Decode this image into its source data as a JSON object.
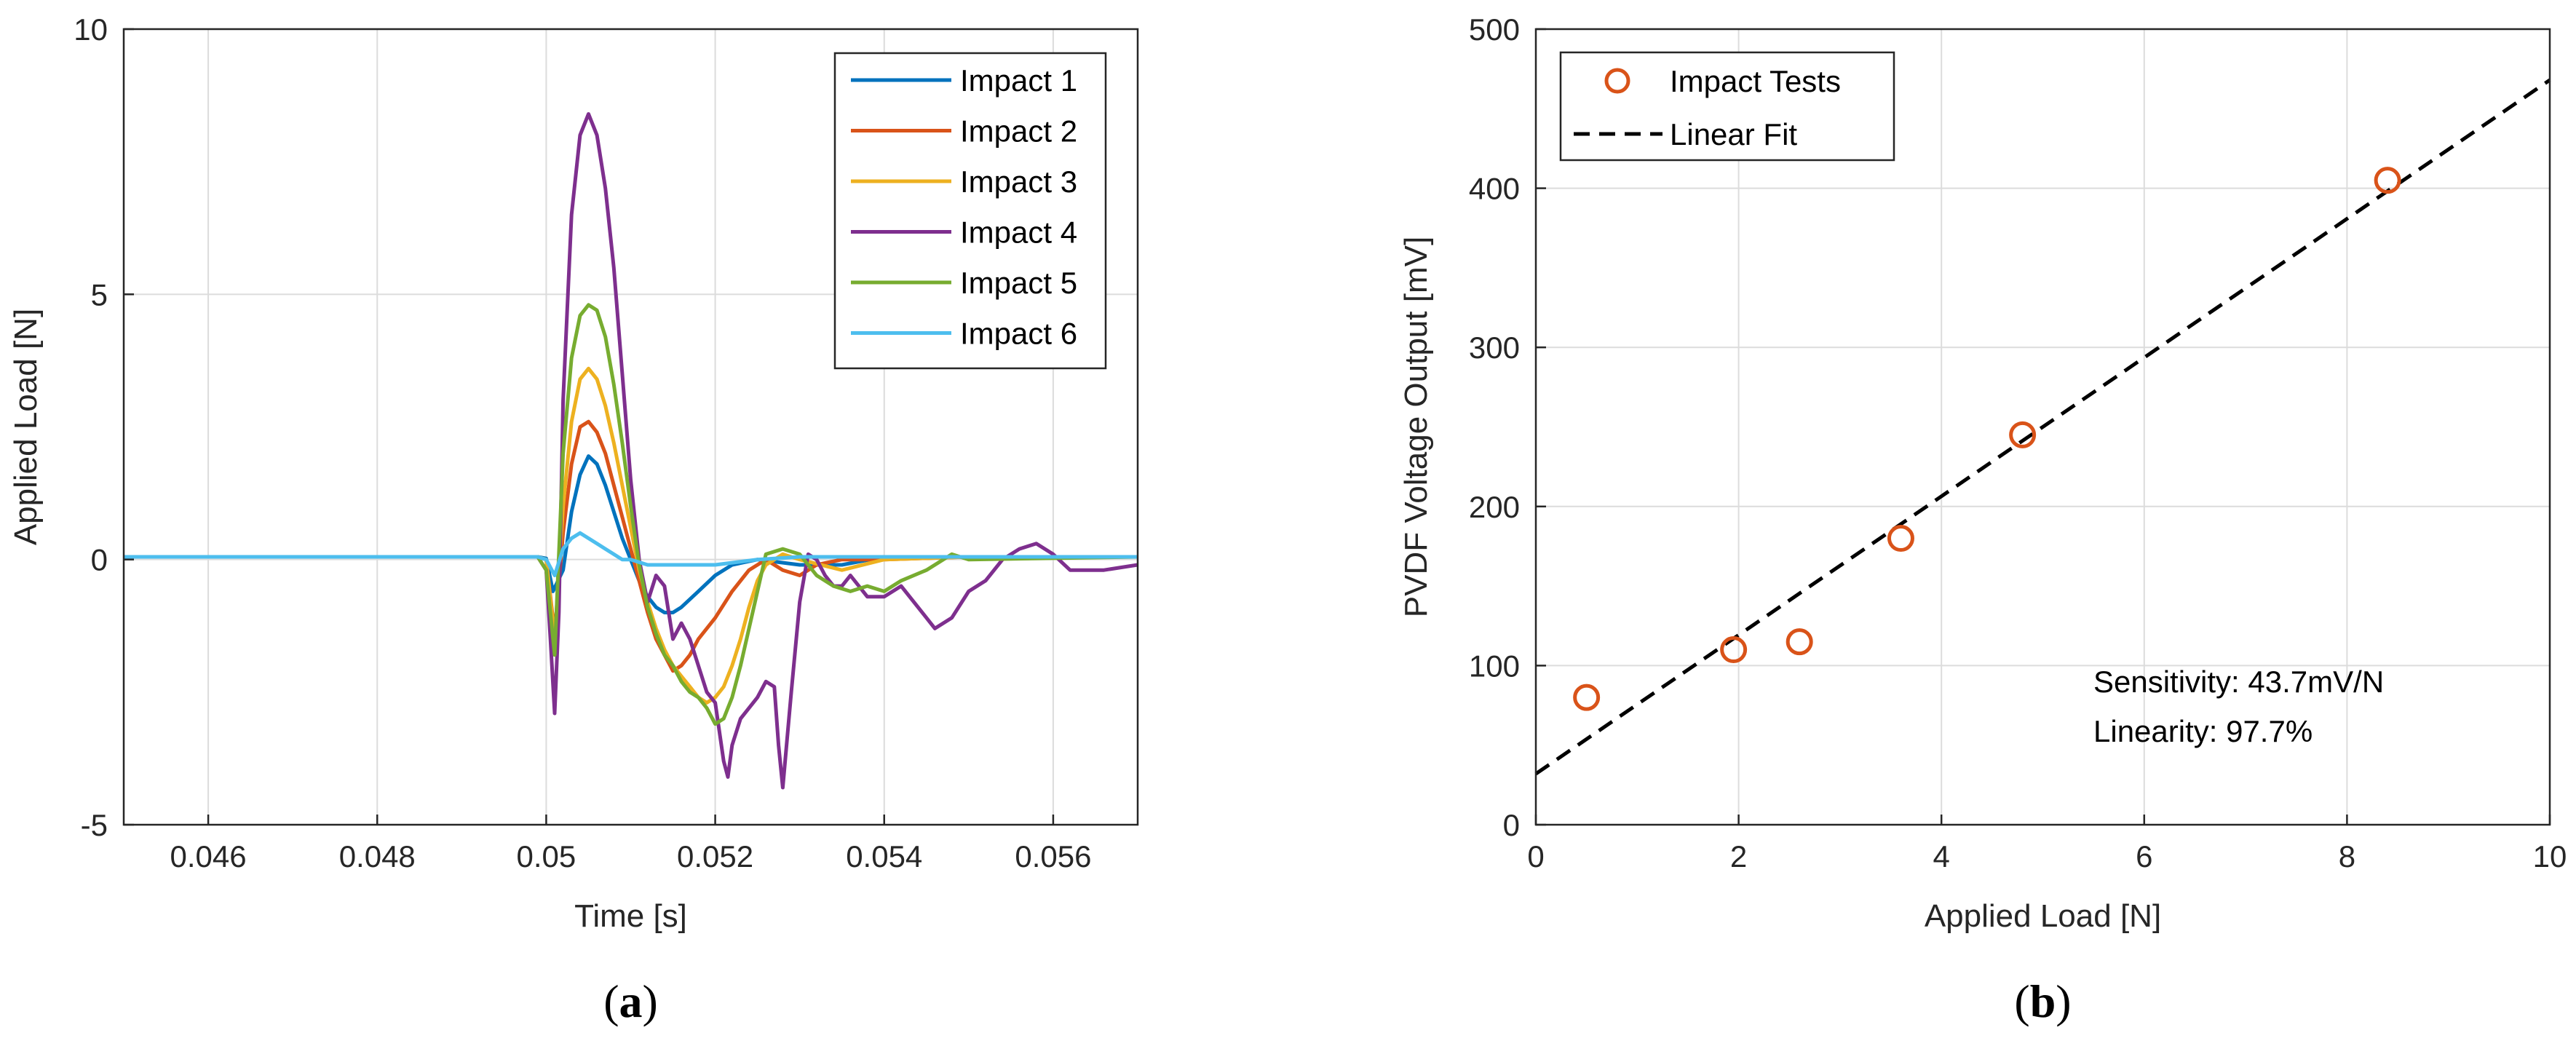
{
  "chart_data": [
    {
      "id": "a",
      "type": "line",
      "caption_letter": "a",
      "xlabel": "Time [s]",
      "ylabel": "Applied Load [N]",
      "xlim": [
        0.045,
        0.057
      ],
      "ylim": [
        -5,
        10
      ],
      "xticks": [
        0.046,
        0.048,
        0.05,
        0.052,
        0.054,
        0.056
      ],
      "xtick_labels": [
        "0.046",
        "0.048",
        "0.05",
        "0.052",
        "0.054",
        "0.056"
      ],
      "yticks": [
        -5,
        0,
        5,
        10
      ],
      "ytick_labels": [
        "-5",
        "0",
        "5",
        "10"
      ],
      "grid": true,
      "legend_position": "top-right",
      "series": [
        {
          "name": "Impact 1",
          "color": "#0072BD",
          "x": [
            0.045,
            0.0499,
            0.05,
            0.05008,
            0.0502,
            0.0503,
            0.0504,
            0.0505,
            0.0506,
            0.0507,
            0.0508,
            0.0509,
            0.051,
            0.0511,
            0.0512,
            0.0513,
            0.0514,
            0.0515,
            0.0516,
            0.0518,
            0.052,
            0.0522,
            0.0525,
            0.053,
            0.0535,
            0.054,
            0.055,
            0.057
          ],
          "y": [
            0.05,
            0.05,
            0.02,
            -0.6,
            -0.2,
            0.9,
            1.6,
            1.95,
            1.8,
            1.4,
            0.9,
            0.4,
            0.0,
            -0.4,
            -0.7,
            -0.9,
            -1.0,
            -1.0,
            -0.9,
            -0.6,
            -0.3,
            -0.1,
            0.0,
            -0.1,
            -0.1,
            0.05,
            0.05,
            0.05
          ]
        },
        {
          "name": "Impact 2",
          "color": "#D95319",
          "x": [
            0.045,
            0.0499,
            0.05,
            0.0501,
            0.0502,
            0.0503,
            0.0504,
            0.0505,
            0.0506,
            0.0507,
            0.0508,
            0.0509,
            0.051,
            0.0511,
            0.0512,
            0.0513,
            0.0514,
            0.0515,
            0.0516,
            0.0517,
            0.0518,
            0.052,
            0.0522,
            0.0524,
            0.0526,
            0.0528,
            0.053,
            0.0532,
            0.0535,
            0.054,
            0.055,
            0.057
          ],
          "y": [
            0.05,
            0.05,
            0.0,
            -1.4,
            0.5,
            1.8,
            2.5,
            2.6,
            2.4,
            2.0,
            1.4,
            0.8,
            0.2,
            -0.4,
            -1.0,
            -1.5,
            -1.8,
            -2.1,
            -2.0,
            -1.8,
            -1.5,
            -1.1,
            -0.6,
            -0.2,
            0.0,
            -0.2,
            -0.3,
            -0.1,
            0.0,
            0.0,
            0.05,
            0.05
          ]
        },
        {
          "name": "Impact 3",
          "color": "#EDB120",
          "x": [
            0.045,
            0.0499,
            0.05,
            0.0501,
            0.0502,
            0.0503,
            0.0504,
            0.0505,
            0.0506,
            0.0507,
            0.0508,
            0.0509,
            0.051,
            0.0511,
            0.0512,
            0.0513,
            0.0514,
            0.0515,
            0.0516,
            0.0517,
            0.0518,
            0.0519,
            0.052,
            0.0521,
            0.0522,
            0.0523,
            0.0524,
            0.0525,
            0.0526,
            0.0527,
            0.0528,
            0.053,
            0.0535,
            0.054,
            0.055,
            0.057
          ],
          "y": [
            0.05,
            0.05,
            0.0,
            -1.5,
            1.0,
            2.6,
            3.4,
            3.6,
            3.4,
            2.9,
            2.2,
            1.4,
            0.6,
            -0.2,
            -0.8,
            -1.3,
            -1.7,
            -2.0,
            -2.2,
            -2.4,
            -2.6,
            -2.7,
            -2.6,
            -2.4,
            -2.0,
            -1.5,
            -0.9,
            -0.4,
            -0.1,
            0.0,
            0.1,
            0.0,
            -0.2,
            0.0,
            0.05,
            0.05
          ]
        },
        {
          "name": "Impact 4",
          "color": "#7E2F8E",
          "x": [
            0.045,
            0.0499,
            0.05,
            0.05005,
            0.0501,
            0.05015,
            0.0502,
            0.0503,
            0.0504,
            0.0505,
            0.0506,
            0.0507,
            0.0508,
            0.0509,
            0.051,
            0.0511,
            0.0512,
            0.0513,
            0.0514,
            0.0515,
            0.0516,
            0.0517,
            0.0518,
            0.0519,
            0.052,
            0.0521,
            0.05215,
            0.0522,
            0.0523,
            0.0524,
            0.0525,
            0.0526,
            0.0527,
            0.05275,
            0.0528,
            0.0529,
            0.053,
            0.0531,
            0.0532,
            0.0533,
            0.0534,
            0.0535,
            0.0536,
            0.0538,
            0.054,
            0.0542,
            0.0544,
            0.0546,
            0.0548,
            0.055,
            0.0552,
            0.0554,
            0.0556,
            0.0558,
            0.056,
            0.0562,
            0.0564,
            0.0566,
            0.057
          ],
          "y": [
            0.05,
            0.05,
            -0.2,
            -1.5,
            -2.9,
            -1.0,
            3.0,
            6.5,
            8.0,
            8.4,
            8.0,
            7.0,
            5.5,
            3.5,
            1.5,
            0.0,
            -0.8,
            -0.3,
            -0.5,
            -1.5,
            -1.2,
            -1.5,
            -2.0,
            -2.5,
            -2.7,
            -3.8,
            -4.1,
            -3.5,
            -3.0,
            -2.8,
            -2.6,
            -2.3,
            -2.4,
            -3.5,
            -4.3,
            -2.5,
            -0.8,
            0.1,
            0.0,
            -0.3,
            -0.5,
            -0.5,
            -0.3,
            -0.7,
            -0.7,
            -0.5,
            -0.9,
            -1.3,
            -1.1,
            -0.6,
            -0.4,
            0.0,
            0.2,
            0.3,
            0.1,
            -0.2,
            -0.2,
            -0.2,
            -0.1
          ]
        },
        {
          "name": "Impact 5",
          "color": "#77AC30",
          "x": [
            0.045,
            0.0499,
            0.05,
            0.0501,
            0.0502,
            0.0503,
            0.0504,
            0.0505,
            0.0506,
            0.0507,
            0.0508,
            0.0509,
            0.051,
            0.0511,
            0.0512,
            0.0513,
            0.0514,
            0.0515,
            0.0516,
            0.0517,
            0.0518,
            0.0519,
            0.052,
            0.0521,
            0.0522,
            0.0523,
            0.0524,
            0.0525,
            0.0526,
            0.0528,
            0.053,
            0.0532,
            0.0534,
            0.0536,
            0.0538,
            0.054,
            0.0542,
            0.0545,
            0.0548,
            0.055,
            0.057
          ],
          "y": [
            0.05,
            0.05,
            -0.2,
            -1.8,
            2.0,
            3.8,
            4.6,
            4.8,
            4.7,
            4.2,
            3.3,
            2.2,
            1.0,
            -0.1,
            -0.9,
            -1.4,
            -1.8,
            -2.0,
            -2.3,
            -2.5,
            -2.6,
            -2.8,
            -3.1,
            -3.0,
            -2.6,
            -2.0,
            -1.3,
            -0.6,
            0.1,
            0.2,
            0.1,
            -0.3,
            -0.5,
            -0.6,
            -0.5,
            -0.6,
            -0.4,
            -0.2,
            0.1,
            0.0,
            0.05
          ]
        },
        {
          "name": "Impact 6",
          "color": "#4DBEEE",
          "x": [
            0.045,
            0.0499,
            0.05,
            0.0501,
            0.0502,
            0.0503,
            0.0504,
            0.0505,
            0.0506,
            0.0507,
            0.0508,
            0.0509,
            0.051,
            0.0512,
            0.0514,
            0.0516,
            0.0518,
            0.052,
            0.0525,
            0.053,
            0.057
          ],
          "y": [
            0.05,
            0.05,
            0.0,
            -0.3,
            0.2,
            0.4,
            0.5,
            0.4,
            0.3,
            0.2,
            0.1,
            0.0,
            0.0,
            -0.1,
            -0.1,
            -0.1,
            -0.1,
            -0.1,
            0.0,
            0.05,
            0.05
          ]
        }
      ]
    },
    {
      "id": "b",
      "type": "scatter",
      "caption_letter": "b",
      "xlabel": "Applied Load [N]",
      "ylabel": "PVDF Voltage Output [mV]",
      "xlim": [
        0,
        10
      ],
      "ylim": [
        0,
        500
      ],
      "xticks": [
        0,
        2,
        4,
        6,
        8,
        10
      ],
      "xtick_labels": [
        "0",
        "2",
        "4",
        "6",
        "8",
        "10"
      ],
      "yticks": [
        0,
        100,
        200,
        300,
        400,
        500
      ],
      "ytick_labels": [
        "0",
        "100",
        "200",
        "300",
        "400",
        "500"
      ],
      "grid": true,
      "legend_position": "top-left",
      "series": [
        {
          "name": "Impact Tests",
          "color": "#D95319",
          "marker": "circle",
          "x": [
            0.5,
            1.95,
            2.6,
            3.6,
            4.8,
            8.4
          ],
          "y": [
            80,
            110,
            115,
            180,
            245,
            405
          ]
        },
        {
          "name": "Linear Fit",
          "color": "#000000",
          "style": "dashed",
          "x": [
            0,
            10
          ],
          "y": [
            32,
            468
          ]
        }
      ],
      "annotations": [
        "Sensitivity: 43.7mV/N",
        "Linearity: 97.7%"
      ]
    }
  ]
}
